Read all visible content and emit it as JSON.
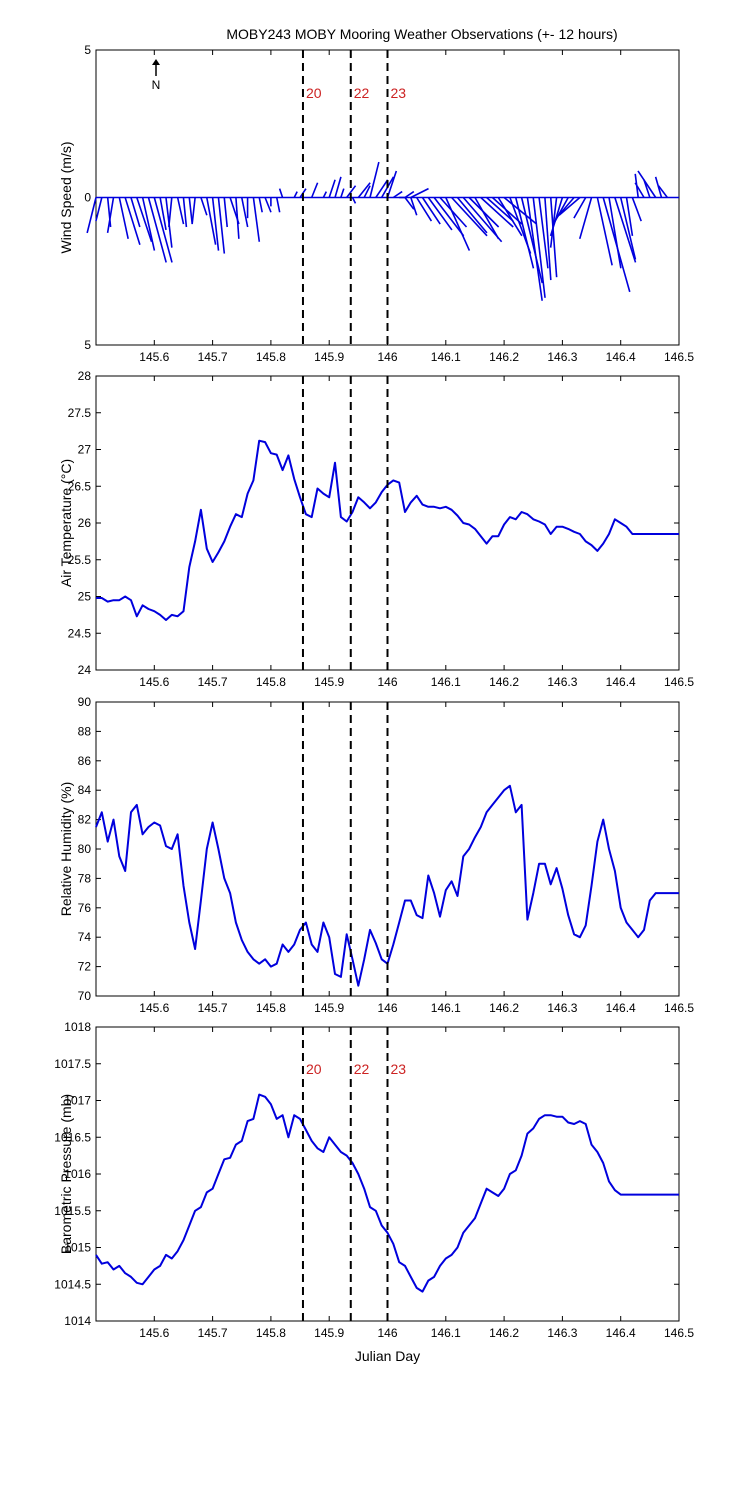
{
  "title": "MOBY243 MOBY Mooring Weather Observations (+- 12 hours)",
  "colors": {
    "series": "#0000dd",
    "event": "#000000",
    "event_label": "#cc2222"
  },
  "north_label": "N",
  "events": [
    {
      "x": 145.855,
      "label": "20"
    },
    {
      "x": 145.937,
      "label": "22"
    },
    {
      "x": 146.0,
      "label": "23"
    }
  ],
  "chart_data": [
    {
      "type": "vector",
      "xlabel": "",
      "ylabel": "Wind Speed (m/s)",
      "xlim": [
        145.5,
        146.5
      ],
      "ylim": [
        -5,
        5
      ],
      "xticks": [
        "145.6",
        "145.7",
        "145.8",
        "145.9",
        "146",
        "146.1",
        "146.2",
        "146.3",
        "146.4",
        "146.5"
      ],
      "yticks": [
        "5",
        "0",
        "5"
      ],
      "show_events": true,
      "event_labels": true,
      "vectors": [
        [
          145.5,
          -0.3,
          -1.2
        ],
        [
          145.51,
          -0.2,
          -0.8
        ],
        [
          145.52,
          0.1,
          -1.0
        ],
        [
          145.53,
          -0.2,
          -1.2
        ],
        [
          145.54,
          0.3,
          -1.4
        ],
        [
          145.55,
          0.5,
          -1.6
        ],
        [
          145.56,
          0.3,
          -1.0
        ],
        [
          145.57,
          0.5,
          -1.5
        ],
        [
          145.58,
          0.4,
          -1.8
        ],
        [
          145.59,
          0.6,
          -2.2
        ],
        [
          145.6,
          0.6,
          -2.2
        ],
        [
          145.61,
          0.2,
          -1.1
        ],
        [
          145.62,
          0.2,
          -1.7
        ],
        [
          145.63,
          -0.1,
          -1.0
        ],
        [
          145.64,
          0.2,
          -0.9
        ],
        [
          145.65,
          0.1,
          -1.0
        ],
        [
          145.66,
          0.1,
          -0.9
        ],
        [
          145.67,
          -0.1,
          -0.9
        ],
        [
          145.68,
          0.2,
          -0.6
        ],
        [
          145.69,
          0.3,
          -1.6
        ],
        [
          145.7,
          0.2,
          -1.8
        ],
        [
          145.71,
          0.2,
          -1.9
        ],
        [
          145.72,
          0.1,
          -1.0
        ],
        [
          145.73,
          0.3,
          -0.9
        ],
        [
          145.74,
          0.1,
          -1.4
        ],
        [
          145.75,
          0.2,
          -1.0
        ],
        [
          145.76,
          0.0,
          -0.7
        ],
        [
          145.77,
          0.2,
          -1.5
        ],
        [
          145.78,
          0.1,
          -0.5
        ],
        [
          145.79,
          0.2,
          -0.5
        ],
        [
          145.8,
          0.0,
          -0.3
        ],
        [
          145.81,
          0.1,
          -0.5
        ],
        [
          145.82,
          -0.1,
          0.3
        ],
        [
          145.84,
          0.1,
          0.2
        ],
        [
          145.85,
          0.2,
          0.3
        ],
        [
          145.87,
          0.2,
          0.5
        ],
        [
          145.89,
          0.1,
          0.2
        ],
        [
          145.9,
          0.2,
          0.6
        ],
        [
          145.91,
          0.2,
          0.7
        ],
        [
          145.92,
          0.1,
          0.3
        ],
        [
          145.93,
          0.3,
          0.4
        ],
        [
          145.94,
          0.1,
          -0.2
        ],
        [
          145.95,
          0.4,
          0.5
        ],
        [
          145.96,
          0.2,
          0.4
        ],
        [
          145.97,
          0.3,
          1.2
        ],
        [
          145.98,
          0.4,
          0.6
        ],
        [
          145.99,
          0.4,
          0.7
        ],
        [
          146.0,
          0.3,
          0.9
        ],
        [
          146.01,
          0.3,
          0.2
        ],
        [
          146.02,
          0.2,
          0.0
        ],
        [
          146.03,
          0.3,
          0.2
        ],
        [
          146.04,
          0.6,
          0.3
        ],
        [
          146.03,
          0.3,
          -0.4
        ],
        [
          146.04,
          0.2,
          -0.6
        ],
        [
          146.05,
          0.5,
          -0.8
        ],
        [
          146.06,
          0.6,
          -0.9
        ],
        [
          146.07,
          0.8,
          -1.1
        ],
        [
          146.08,
          1.0,
          -1.3
        ],
        [
          146.09,
          0.9,
          -1.0
        ],
        [
          146.1,
          0.8,
          -1.8
        ],
        [
          146.11,
          1.2,
          -1.3
        ],
        [
          146.12,
          1.0,
          -1.2
        ],
        [
          146.13,
          1.3,
          -1.5
        ],
        [
          146.14,
          1.0,
          -1.0
        ],
        [
          146.15,
          0.8,
          -1.4
        ],
        [
          146.16,
          1.1,
          -1.0
        ],
        [
          146.17,
          0.9,
          -0.8
        ],
        [
          146.18,
          1.0,
          -0.9
        ],
        [
          146.19,
          0.8,
          -1.3
        ],
        [
          146.2,
          1.1,
          -0.9
        ],
        [
          146.21,
          0.7,
          -1.9
        ],
        [
          146.22,
          0.6,
          -2.4
        ],
        [
          146.23,
          0.7,
          -2.9
        ],
        [
          146.24,
          0.5,
          -3.5
        ],
        [
          146.25,
          0.4,
          -3.4
        ],
        [
          146.26,
          0.3,
          -2.4
        ],
        [
          146.27,
          0.2,
          -2.8
        ],
        [
          146.28,
          0.2,
          -2.7
        ],
        [
          146.29,
          -0.2,
          -1.7
        ],
        [
          146.3,
          -0.4,
          -1.3
        ],
        [
          146.31,
          -0.5,
          -0.9
        ],
        [
          146.32,
          -0.6,
          -0.7
        ],
        [
          146.33,
          -0.7,
          -0.6
        ],
        [
          146.34,
          -0.4,
          -0.7
        ],
        [
          146.35,
          -0.4,
          -1.4
        ],
        [
          146.36,
          0.5,
          -2.3
        ],
        [
          146.37,
          0.9,
          -3.2
        ],
        [
          146.38,
          0.4,
          -2.4
        ],
        [
          146.39,
          0.7,
          -2.2
        ],
        [
          146.4,
          0.5,
          -2.1
        ],
        [
          146.41,
          0.2,
          -1.3
        ],
        [
          146.42,
          0.3,
          -0.8
        ],
        [
          146.43,
          -0.1,
          0.8
        ],
        [
          146.44,
          -0.3,
          0.5
        ],
        [
          146.45,
          -0.2,
          0.6
        ],
        [
          146.46,
          -0.6,
          0.9
        ],
        [
          146.47,
          -0.2,
          0.7
        ],
        [
          146.48,
          -0.3,
          0.4
        ]
      ]
    },
    {
      "type": "line",
      "xlabel": "",
      "ylabel": "Air Temperature (°C)",
      "xlim": [
        145.5,
        146.5
      ],
      "ylim": [
        24,
        28
      ],
      "xticks": [
        "145.6",
        "145.7",
        "145.8",
        "145.9",
        "146",
        "146.1",
        "146.2",
        "146.3",
        "146.4",
        "146.5"
      ],
      "yticks": [
        "24",
        "24.5",
        "25",
        "25.5",
        "26",
        "26.5",
        "27",
        "27.5",
        "28"
      ],
      "show_events": true,
      "event_labels": false,
      "x": [
        145.5,
        145.51,
        145.52,
        145.53,
        145.54,
        145.55,
        145.56,
        145.57,
        145.58,
        145.59,
        145.6,
        145.61,
        145.62,
        145.63,
        145.64,
        145.65,
        145.66,
        145.67,
        145.68,
        145.69,
        145.7,
        145.71,
        145.72,
        145.73,
        145.74,
        145.75,
        145.76,
        145.77,
        145.78,
        145.79,
        145.8,
        145.81,
        145.82,
        145.83,
        145.84,
        145.85,
        145.86,
        145.87,
        145.88,
        145.89,
        145.9,
        145.91,
        145.92,
        145.93,
        145.94,
        145.95,
        145.96,
        145.97,
        145.98,
        145.99,
        146.0,
        146.01,
        146.02,
        146.03,
        146.04,
        146.05,
        146.06,
        146.07,
        146.08,
        146.09,
        146.1,
        146.11,
        146.12,
        146.13,
        146.14,
        146.15,
        146.16,
        146.17,
        146.18,
        146.19,
        146.2,
        146.21,
        146.22,
        146.23,
        146.24,
        146.25,
        146.26,
        146.27,
        146.28,
        146.29,
        146.3,
        146.31,
        146.32,
        146.33,
        146.34,
        146.35,
        146.36,
        146.37,
        146.38,
        146.39,
        146.4,
        146.41,
        146.42,
        146.43,
        146.44,
        146.45,
        146.46,
        146.47,
        146.48,
        146.49,
        146.5
      ],
      "y": [
        24.98,
        24.98,
        24.93,
        24.95,
        24.95,
        25.0,
        24.95,
        24.73,
        24.88,
        24.83,
        24.8,
        24.75,
        24.68,
        24.75,
        24.73,
        24.8,
        25.4,
        25.75,
        26.18,
        25.65,
        25.47,
        25.6,
        25.75,
        25.95,
        26.12,
        26.08,
        26.4,
        26.58,
        27.12,
        27.1,
        26.95,
        26.93,
        26.72,
        26.92,
        26.6,
        26.35,
        26.12,
        26.08,
        26.47,
        26.4,
        26.35,
        26.82,
        26.08,
        26.02,
        26.15,
        26.35,
        26.28,
        26.2,
        26.28,
        26.42,
        26.52,
        26.58,
        26.55,
        26.15,
        26.28,
        26.37,
        26.25,
        26.22,
        26.22,
        26.2,
        26.22,
        26.18,
        26.1,
        26.0,
        25.98,
        25.92,
        25.82,
        25.72,
        25.82,
        25.82,
        25.98,
        26.08,
        26.05,
        26.15,
        26.12,
        26.05,
        26.02,
        25.98,
        25.85,
        25.95,
        25.95,
        25.92,
        25.88,
        25.85,
        25.75,
        25.7,
        25.62,
        25.72,
        25.85,
        26.05,
        26.0,
        25.95,
        25.85,
        25.85,
        25.85,
        25.85,
        25.85,
        25.85,
        25.85,
        25.85,
        25.85
      ]
    },
    {
      "type": "line",
      "xlabel": "",
      "ylabel": "Relative Humidity (%)",
      "xlim": [
        145.5,
        146.5
      ],
      "ylim": [
        70,
        90
      ],
      "xticks": [
        "145.6",
        "145.7",
        "145.8",
        "145.9",
        "146",
        "146.1",
        "146.2",
        "146.3",
        "146.4",
        "146.5"
      ],
      "yticks": [
        "70",
        "72",
        "74",
        "76",
        "78",
        "80",
        "82",
        "84",
        "86",
        "88",
        "90"
      ],
      "show_events": true,
      "event_labels": false,
      "x": [
        145.5,
        145.51,
        145.52,
        145.53,
        145.54,
        145.55,
        145.56,
        145.57,
        145.58,
        145.59,
        145.6,
        145.61,
        145.62,
        145.63,
        145.64,
        145.65,
        145.66,
        145.67,
        145.68,
        145.69,
        145.7,
        145.71,
        145.72,
        145.73,
        145.74,
        145.75,
        145.76,
        145.77,
        145.78,
        145.79,
        145.8,
        145.81,
        145.82,
        145.83,
        145.84,
        145.85,
        145.86,
        145.87,
        145.88,
        145.89,
        145.9,
        145.91,
        145.92,
        145.93,
        145.94,
        145.95,
        145.96,
        145.97,
        145.98,
        145.99,
        146.0,
        146.01,
        146.02,
        146.03,
        146.04,
        146.05,
        146.06,
        146.07,
        146.08,
        146.09,
        146.1,
        146.11,
        146.12,
        146.13,
        146.14,
        146.15,
        146.16,
        146.17,
        146.18,
        146.19,
        146.2,
        146.21,
        146.22,
        146.23,
        146.24,
        146.25,
        146.26,
        146.27,
        146.28,
        146.29,
        146.3,
        146.31,
        146.32,
        146.33,
        146.34,
        146.35,
        146.36,
        146.37,
        146.38,
        146.39,
        146.4,
        146.41,
        146.42,
        146.43,
        146.44,
        146.45,
        146.46,
        146.47,
        146.48,
        146.49,
        146.5
      ],
      "y": [
        81.5,
        82.5,
        80.5,
        82.0,
        79.5,
        78.5,
        82.5,
        83.0,
        81.0,
        81.5,
        81.8,
        81.6,
        80.2,
        80.0,
        81.0,
        77.5,
        75.0,
        73.2,
        76.5,
        80.0,
        81.8,
        80.0,
        78.0,
        77.0,
        75.0,
        73.8,
        73.0,
        72.5,
        72.2,
        72.5,
        72.0,
        72.2,
        73.5,
        73.0,
        73.5,
        74.5,
        75.0,
        73.5,
        73.0,
        75.0,
        74.0,
        71.5,
        71.3,
        74.2,
        72.5,
        70.7,
        72.5,
        74.5,
        73.6,
        72.5,
        72.2,
        73.5,
        75.0,
        76.5,
        76.5,
        75.5,
        75.3,
        78.2,
        77.0,
        75.4,
        77.2,
        77.8,
        76.8,
        79.5,
        80.0,
        80.8,
        81.5,
        82.5,
        83.0,
        83.5,
        84.0,
        84.3,
        82.5,
        83.0,
        75.2,
        77.0,
        79.0,
        79.0,
        77.6,
        78.7,
        77.3,
        75.5,
        74.2,
        74.0,
        74.8,
        77.5,
        80.5,
        82.0,
        80.0,
        78.5,
        76.0,
        75.0,
        74.5,
        74.0,
        74.5,
        76.5,
        77.0,
        77.0,
        77.0,
        77.0,
        77.0
      ]
    },
    {
      "type": "line",
      "xlabel": "Julian Day",
      "ylabel": "Barometric Pressure (mb)",
      "xlim": [
        145.5,
        146.5
      ],
      "ylim": [
        1014,
        1018
      ],
      "xticks": [
        "145.6",
        "145.7",
        "145.8",
        "145.9",
        "146",
        "146.1",
        "146.2",
        "146.3",
        "146.4",
        "146.5"
      ],
      "yticks": [
        "1014",
        "1014.5",
        "1015",
        "1015.5",
        "1016",
        "1016.5",
        "1017",
        "1017.5",
        "1018"
      ],
      "show_events": true,
      "event_labels": true,
      "x": [
        145.5,
        145.51,
        145.52,
        145.53,
        145.54,
        145.55,
        145.56,
        145.57,
        145.58,
        145.59,
        145.6,
        145.61,
        145.62,
        145.63,
        145.64,
        145.65,
        145.66,
        145.67,
        145.68,
        145.69,
        145.7,
        145.71,
        145.72,
        145.73,
        145.74,
        145.75,
        145.76,
        145.77,
        145.78,
        145.79,
        145.8,
        145.81,
        145.82,
        145.83,
        145.84,
        145.85,
        145.86,
        145.87,
        145.88,
        145.89,
        145.9,
        145.91,
        145.92,
        145.93,
        145.94,
        145.95,
        145.96,
        145.97,
        145.98,
        145.99,
        146.0,
        146.01,
        146.02,
        146.03,
        146.04,
        146.05,
        146.06,
        146.07,
        146.08,
        146.09,
        146.1,
        146.11,
        146.12,
        146.13,
        146.14,
        146.15,
        146.16,
        146.17,
        146.18,
        146.19,
        146.2,
        146.21,
        146.22,
        146.23,
        146.24,
        146.25,
        146.26,
        146.27,
        146.28,
        146.29,
        146.3,
        146.31,
        146.32,
        146.33,
        146.34,
        146.35,
        146.36,
        146.37,
        146.38,
        146.39,
        146.4,
        146.41,
        146.42,
        146.43,
        146.44,
        146.45,
        146.46,
        146.47,
        146.48,
        146.49,
        146.5
      ],
      "y": [
        1014.9,
        1014.78,
        1014.8,
        1014.7,
        1014.75,
        1014.65,
        1014.6,
        1014.52,
        1014.5,
        1014.6,
        1014.7,
        1014.75,
        1014.9,
        1014.85,
        1014.95,
        1015.1,
        1015.3,
        1015.5,
        1015.55,
        1015.75,
        1015.8,
        1016.0,
        1016.2,
        1016.22,
        1016.4,
        1016.45,
        1016.72,
        1016.75,
        1017.08,
        1017.05,
        1016.95,
        1016.75,
        1016.8,
        1016.5,
        1016.8,
        1016.75,
        1016.6,
        1016.45,
        1016.35,
        1016.3,
        1016.5,
        1016.4,
        1016.3,
        1016.25,
        1016.15,
        1016.0,
        1015.8,
        1015.55,
        1015.5,
        1015.3,
        1015.2,
        1015.05,
        1014.8,
        1014.75,
        1014.6,
        1014.45,
        1014.4,
        1014.55,
        1014.6,
        1014.75,
        1014.85,
        1014.9,
        1015.0,
        1015.2,
        1015.3,
        1015.4,
        1015.6,
        1015.8,
        1015.75,
        1015.7,
        1015.8,
        1016.0,
        1016.05,
        1016.25,
        1016.55,
        1016.62,
        1016.75,
        1016.8,
        1016.8,
        1016.78,
        1016.78,
        1016.7,
        1016.68,
        1016.72,
        1016.68,
        1016.4,
        1016.3,
        1016.15,
        1015.9,
        1015.78,
        1015.72,
        1015.72,
        1015.72,
        1015.72,
        1015.72,
        1015.72,
        1015.72,
        1015.72,
        1015.72,
        1015.72,
        1015.72
      ]
    }
  ]
}
